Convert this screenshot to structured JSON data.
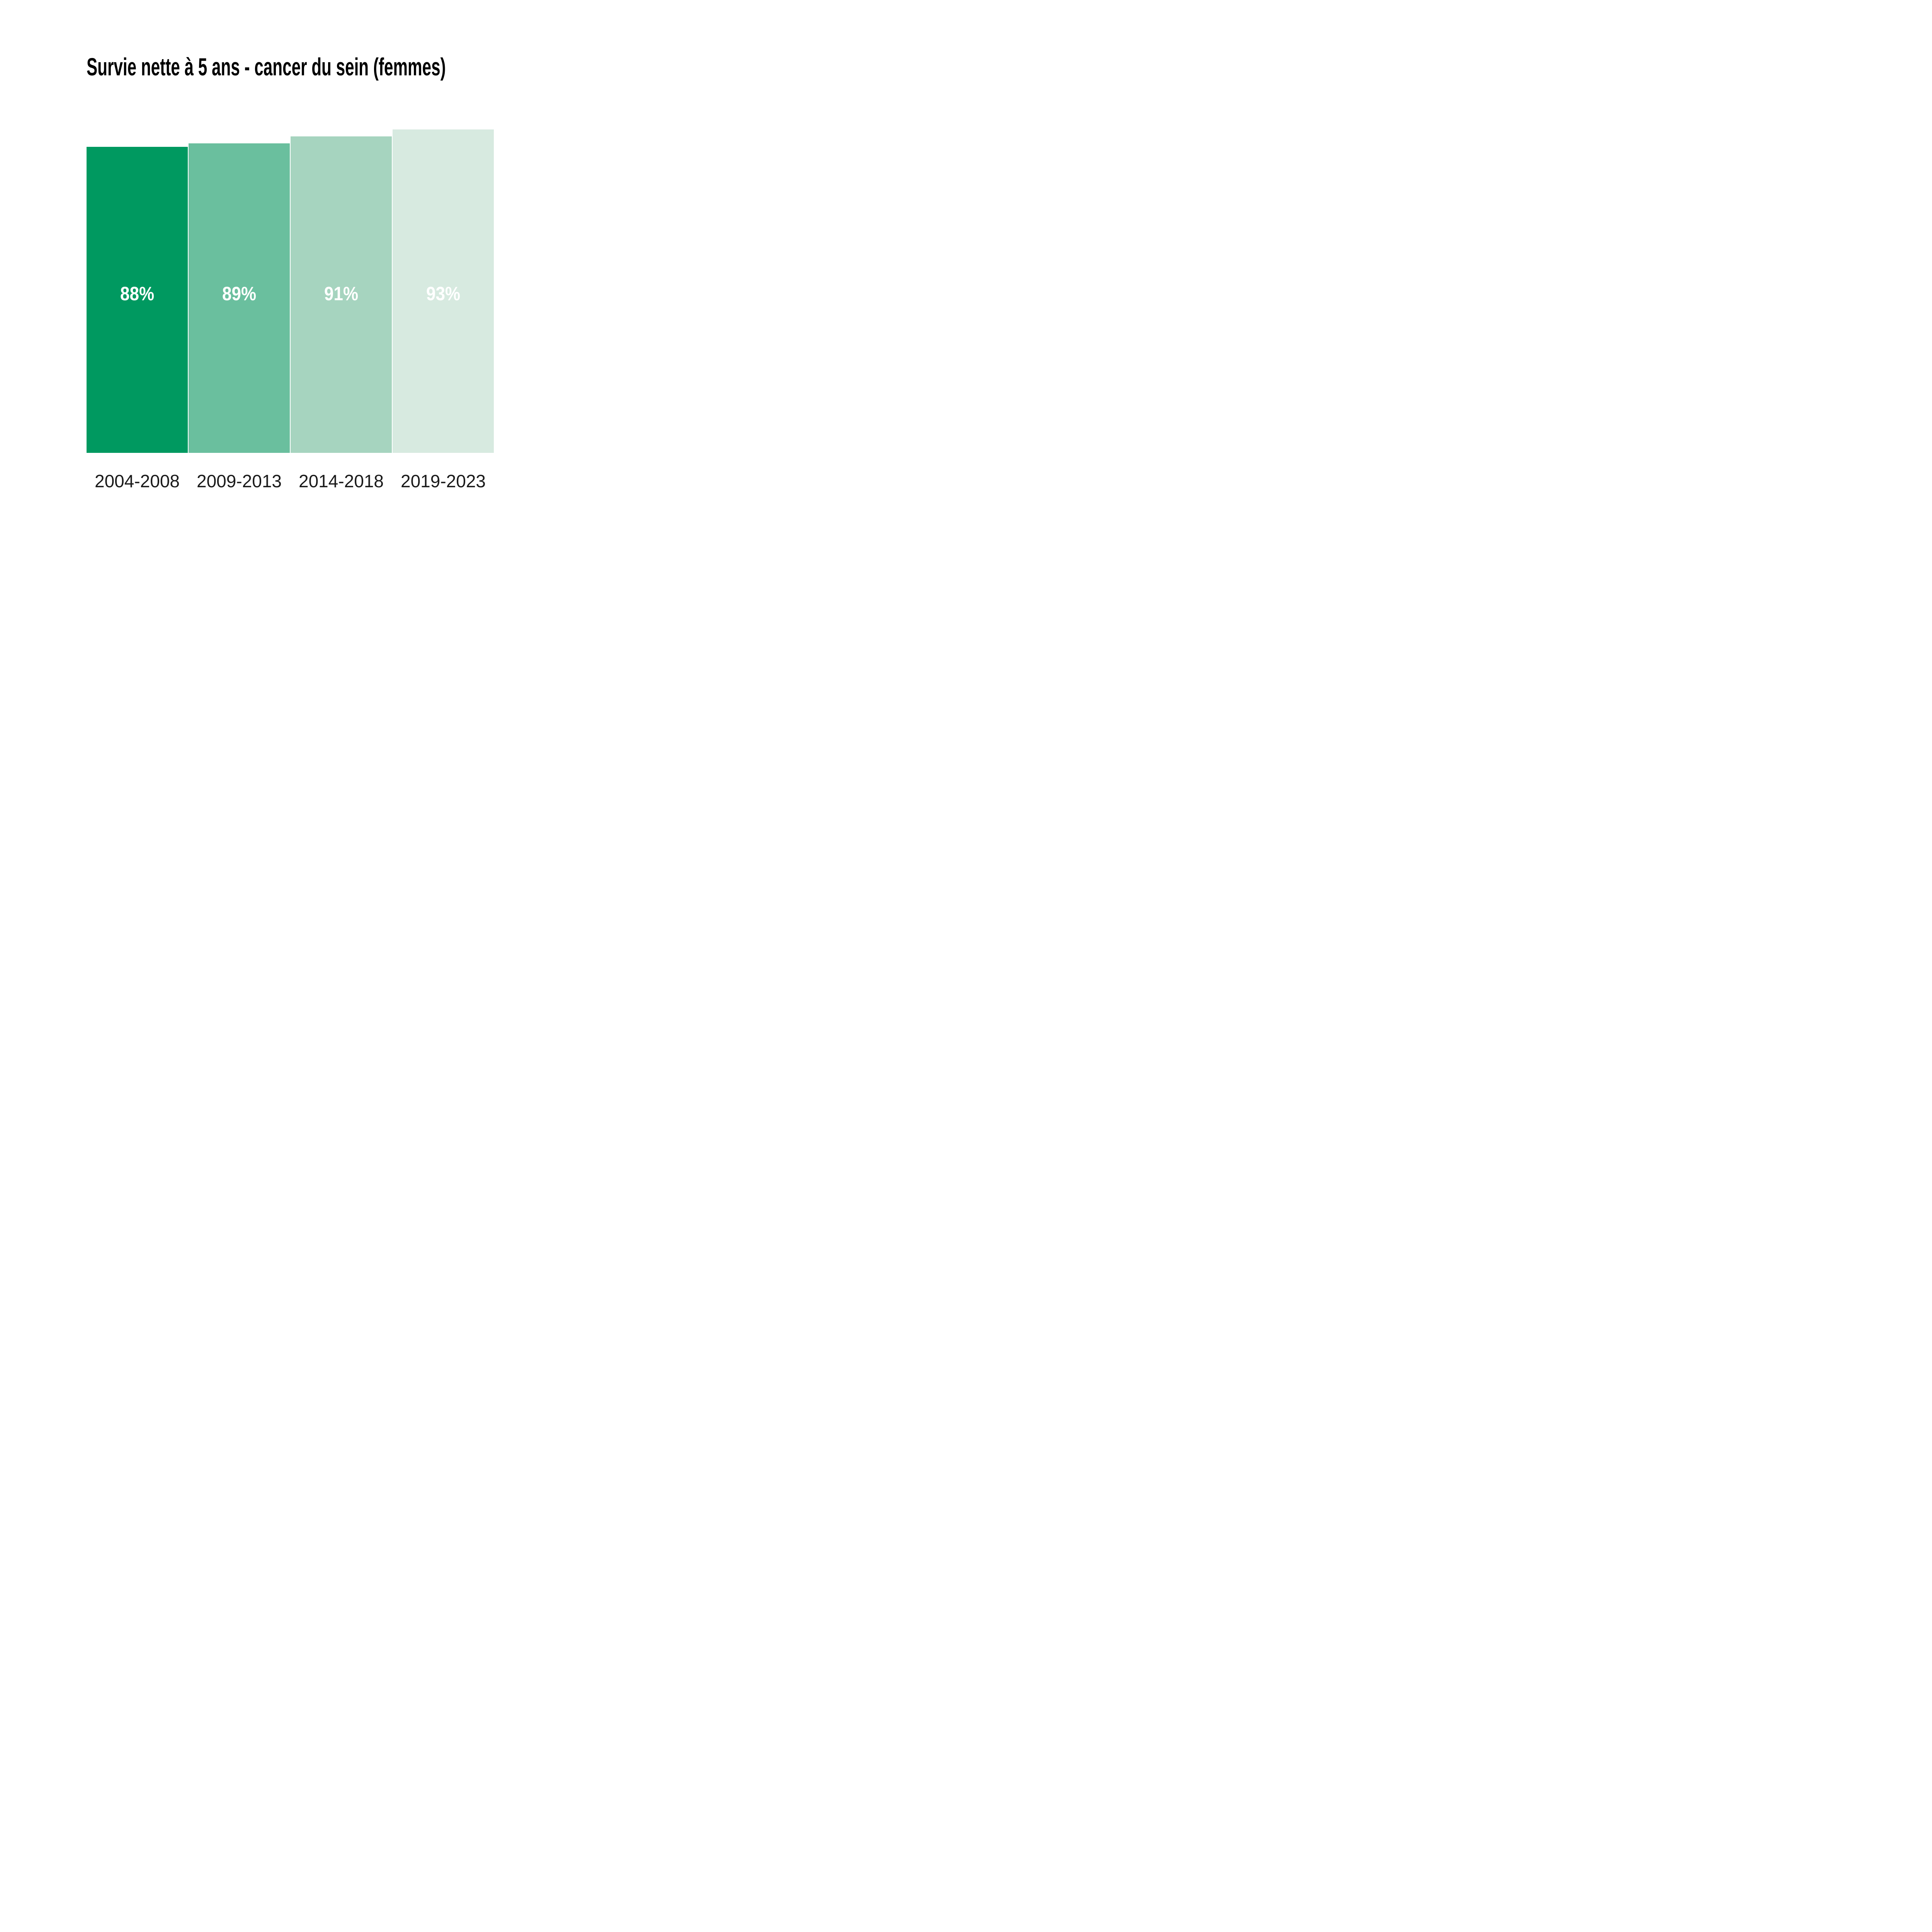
{
  "chart_data": {
    "type": "bar",
    "title": "Survie nette à 5 ans - cancer du sein (femmes)",
    "categories": [
      "2004-2008",
      "2009-2013",
      "2014-2018",
      "2019-2023"
    ],
    "values": [
      88,
      89,
      91,
      93
    ],
    "value_labels": [
      "88%",
      "89%",
      "91%",
      "93%"
    ],
    "unit": "%",
    "xlabel": "",
    "ylabel": "",
    "ylim": [
      0,
      100
    ],
    "grid": false,
    "legend": false,
    "axes_shown": false,
    "bar_colors": [
      "#009960",
      "#6ABF9E",
      "#A6D4BF",
      "#D7EAE0"
    ],
    "value_label_color": "#ffffff",
    "category_label_color": "#1a1a1a",
    "title_color": "#000000",
    "background_color": "#ffffff"
  }
}
